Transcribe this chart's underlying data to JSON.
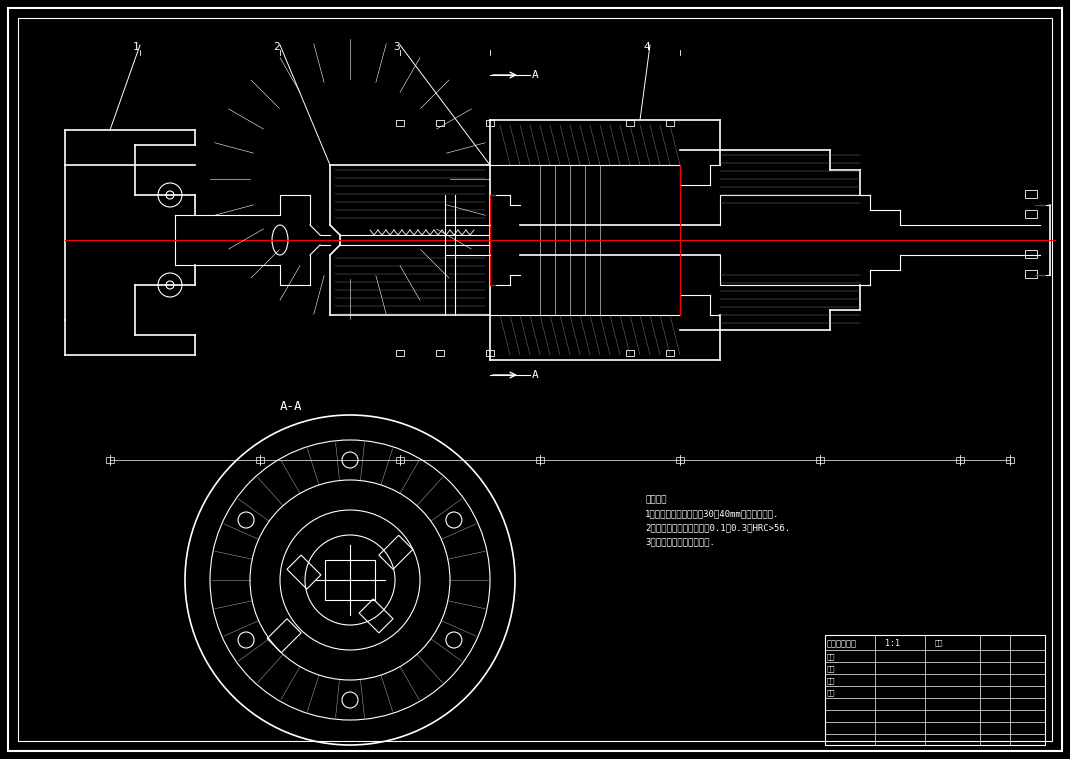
{
  "bg_color": "#000000",
  "border_color": "#ffffff",
  "drawing_color": "#ffffff",
  "red_color": "#ff0000",
  "title": "机械臂装配图",
  "tech_requirements": [
    "技术要求",
    "1、缸体内壁镀铬，厚度30～40mm，镀铬后抛光.",
    "2、活塞杆表面氧化，深度0.1～0.3，HRC>56.",
    "3、轴承装配前用汽油清洗."
  ],
  "section_label": "A-A",
  "arrow_label": "A",
  "part_numbers": [
    "1",
    "2",
    "3",
    "4"
  ],
  "fig_width": 10.7,
  "fig_height": 7.59,
  "dpi": 100
}
